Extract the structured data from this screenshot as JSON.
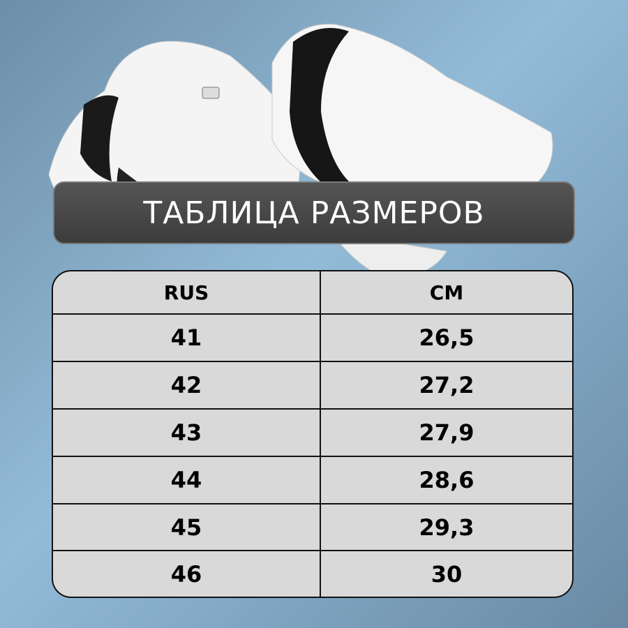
{
  "title": "ТАБЛИЦА РАЗМЕРОВ",
  "table": {
    "headers": [
      "RUS",
      "CM"
    ],
    "rows": [
      [
        "41",
        "26,5"
      ],
      [
        "42",
        "27,2"
      ],
      [
        "43",
        "27,9"
      ],
      [
        "44",
        "28,6"
      ],
      [
        "45",
        "29,3"
      ],
      [
        "46",
        "30"
      ]
    ]
  },
  "colors": {
    "background": "#93bbd8",
    "banner": "#4a4a4a",
    "table": "#d9d9d9"
  }
}
